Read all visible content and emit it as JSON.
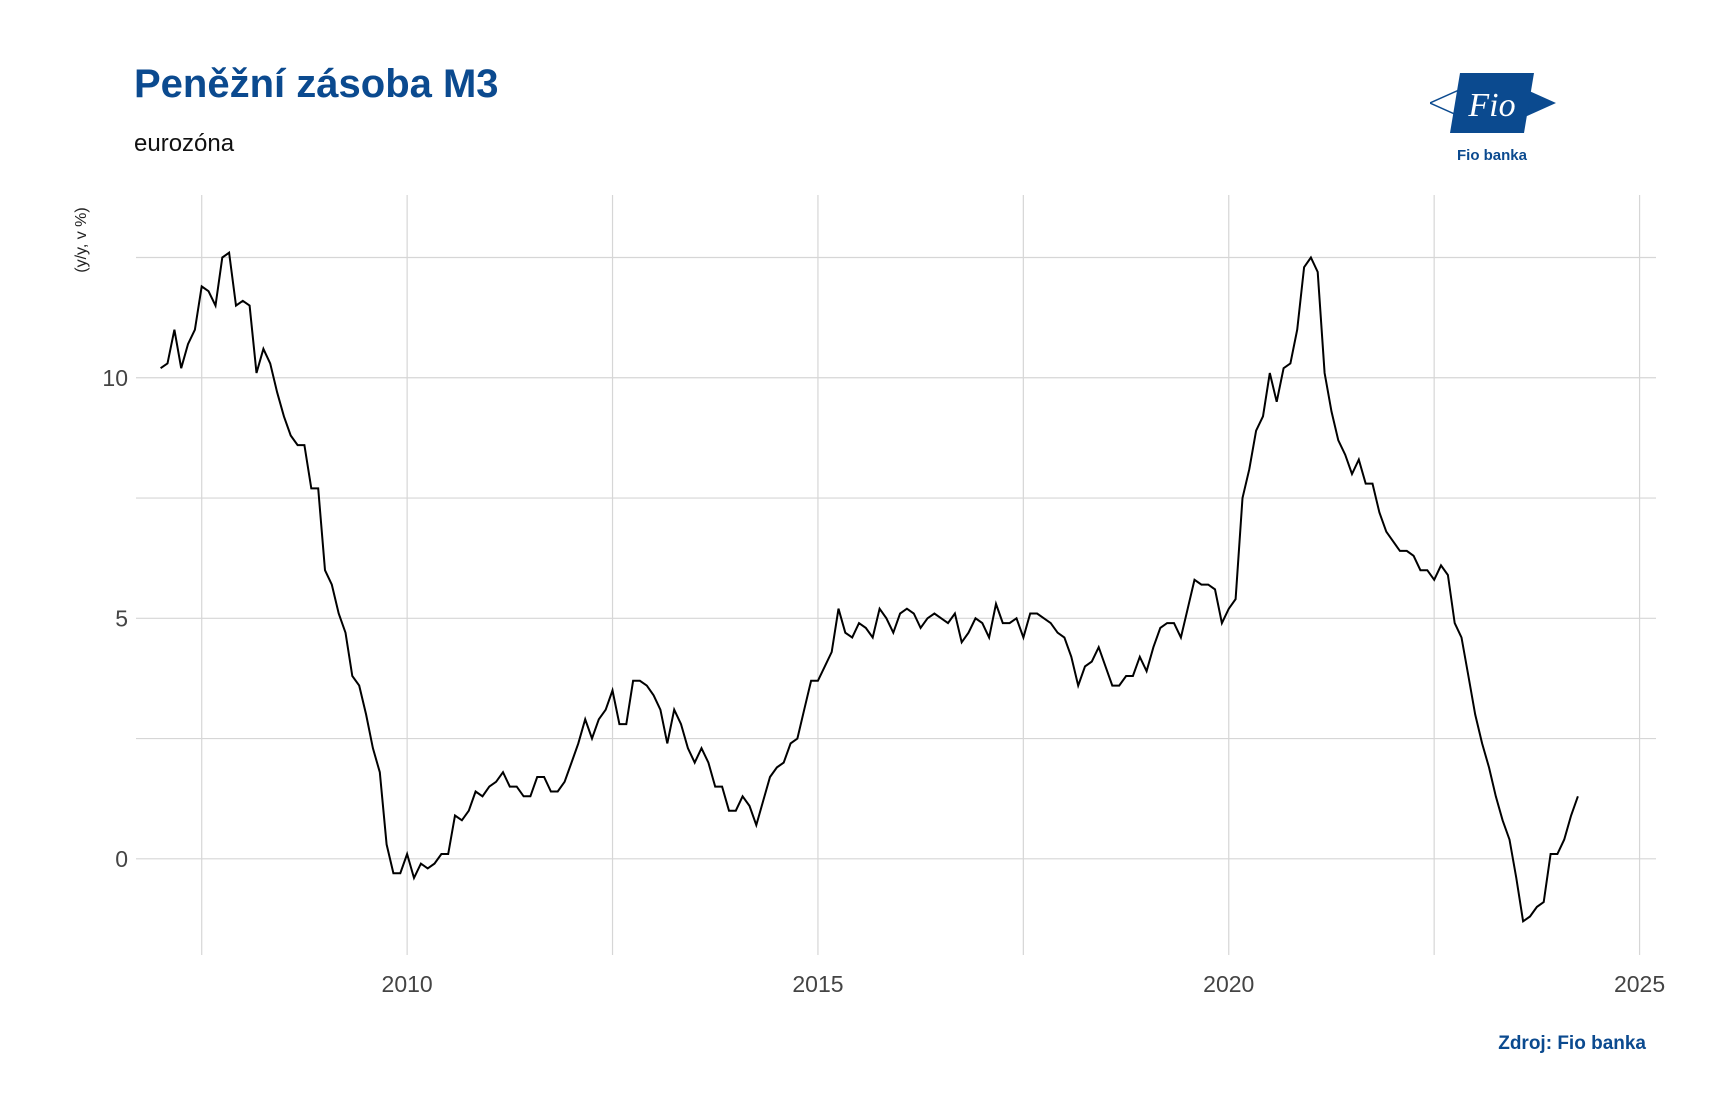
{
  "title": "Peněžní zásoba M3",
  "subtitle": "eurozóna",
  "logo": {
    "icon": "fio-logo",
    "text": "Fio",
    "caption": "Fio banka",
    "color": "#0b4a8f"
  },
  "source": "Zdroj: Fio banka",
  "chart_data": {
    "type": "line",
    "title": "Peněžní zásoba M3",
    "subtitle": "eurozóna",
    "xlabel": "",
    "ylabel": "(y/y, v %)",
    "x_ticks": [
      2010,
      2015,
      2020,
      2025
    ],
    "y_ticks": [
      0,
      5,
      10
    ],
    "x_tick_labels": [
      "2010",
      "2015",
      "2020",
      "2025"
    ],
    "y_tick_labels": [
      "0",
      "5",
      "10"
    ],
    "xlim": [
      2006.7,
      2025.2
    ],
    "ylim": [
      -2.0,
      13.8
    ],
    "grid": true,
    "line_color": "#000000",
    "series": [
      {
        "x": [
          2007.0,
          2007.083,
          2007.167,
          2007.25,
          2007.333,
          2007.417,
          2007.5,
          2007.583,
          2007.667,
          2007.75,
          2007.833,
          2007.917,
          2008.0,
          2008.083,
          2008.167,
          2008.25,
          2008.333,
          2008.417,
          2008.5,
          2008.583,
          2008.667,
          2008.75,
          2008.833,
          2008.917,
          2009.0,
          2009.083,
          2009.167,
          2009.25,
          2009.333,
          2009.417,
          2009.5,
          2009.583,
          2009.667,
          2009.75,
          2009.833,
          2009.917,
          2010.0,
          2010.083,
          2010.167,
          2010.25,
          2010.333,
          2010.417,
          2010.5,
          2010.583,
          2010.667,
          2010.75,
          2010.833,
          2010.917,
          2011.0,
          2011.083,
          2011.167,
          2011.25,
          2011.333,
          2011.417,
          2011.5,
          2011.583,
          2011.667,
          2011.75,
          2011.833,
          2011.917,
          2012.0,
          2012.083,
          2012.167,
          2012.25,
          2012.333,
          2012.417,
          2012.5,
          2012.583,
          2012.667,
          2012.75,
          2012.833,
          2012.917,
          2013.0,
          2013.083,
          2013.167,
          2013.25,
          2013.333,
          2013.417,
          2013.5,
          2013.583,
          2013.667,
          2013.75,
          2013.833,
          2013.917,
          2014.0,
          2014.083,
          2014.167,
          2014.25,
          2014.333,
          2014.417,
          2014.5,
          2014.583,
          2014.667,
          2014.75,
          2014.833,
          2014.917,
          2015.0,
          2015.083,
          2015.167,
          2015.25,
          2015.333,
          2015.417,
          2015.5,
          2015.583,
          2015.667,
          2015.75,
          2015.833,
          2015.917,
          2016.0,
          2016.083,
          2016.167,
          2016.25,
          2016.333,
          2016.417,
          2016.5,
          2016.583,
          2016.667,
          2016.75,
          2016.833,
          2016.917,
          2017.0,
          2017.083,
          2017.167,
          2017.25,
          2017.333,
          2017.417,
          2017.5,
          2017.583,
          2017.667,
          2017.75,
          2017.833,
          2017.917,
          2018.0,
          2018.083,
          2018.167,
          2018.25,
          2018.333,
          2018.417,
          2018.5,
          2018.583,
          2018.667,
          2018.75,
          2018.833,
          2018.917,
          2019.0,
          2019.083,
          2019.167,
          2019.25,
          2019.333,
          2019.417,
          2019.5,
          2019.583,
          2019.667,
          2019.75,
          2019.833,
          2019.917,
          2020.0,
          2020.083,
          2020.167,
          2020.25,
          2020.333,
          2020.417,
          2020.5,
          2020.583,
          2020.667,
          2020.75,
          2020.833,
          2020.917,
          2021.0,
          2021.083,
          2021.167,
          2021.25,
          2021.333,
          2021.417,
          2021.5,
          2021.583,
          2021.667,
          2021.75,
          2021.833,
          2021.917,
          2022.0,
          2022.083,
          2022.167,
          2022.25,
          2022.333,
          2022.417,
          2022.5,
          2022.583,
          2022.667,
          2022.75,
          2022.833,
          2022.917,
          2023.0,
          2023.083,
          2023.167,
          2023.25,
          2023.333,
          2023.417,
          2023.5,
          2023.583,
          2023.667,
          2023.75,
          2023.833,
          2023.917,
          2024.0,
          2024.083,
          2024.167,
          2024.25
        ],
        "y": [
          10.2,
          10.3,
          11.0,
          10.2,
          10.7,
          11.0,
          11.9,
          11.8,
          11.5,
          12.5,
          12.6,
          11.5,
          11.6,
          11.5,
          10.1,
          10.6,
          10.3,
          9.7,
          9.2,
          8.8,
          8.6,
          8.6,
          7.7,
          7.7,
          6.0,
          5.7,
          5.1,
          4.7,
          3.8,
          3.6,
          3.0,
          2.3,
          1.8,
          0.3,
          -0.3,
          -0.3,
          0.1,
          -0.4,
          -0.1,
          -0.2,
          -0.1,
          0.1,
          0.1,
          0.9,
          0.8,
          1.0,
          1.4,
          1.3,
          1.5,
          1.6,
          1.8,
          1.5,
          1.5,
          1.3,
          1.3,
          1.7,
          1.7,
          1.4,
          1.4,
          1.6,
          2.0,
          2.4,
          2.9,
          2.5,
          2.9,
          3.1,
          3.5,
          2.8,
          2.8,
          3.7,
          3.7,
          3.6,
          3.4,
          3.1,
          2.4,
          3.1,
          2.8,
          2.3,
          2.0,
          2.3,
          2.0,
          1.5,
          1.5,
          1.0,
          1.0,
          1.3,
          1.1,
          0.7,
          1.2,
          1.7,
          1.9,
          2.0,
          2.4,
          2.5,
          3.1,
          3.7,
          3.7,
          4.0,
          4.3,
          5.2,
          4.7,
          4.6,
          4.9,
          4.8,
          4.6,
          5.2,
          5.0,
          4.7,
          5.1,
          5.2,
          5.1,
          4.8,
          5.0,
          5.1,
          5.0,
          4.9,
          5.1,
          4.5,
          4.7,
          5.0,
          4.9,
          4.6,
          5.3,
          4.9,
          4.9,
          5.0,
          4.6,
          5.1,
          5.1,
          5.0,
          4.9,
          4.7,
          4.6,
          4.2,
          3.6,
          4.0,
          4.1,
          4.4,
          4.0,
          3.6,
          3.6,
          3.8,
          3.8,
          4.2,
          3.9,
          4.4,
          4.8,
          4.9,
          4.9,
          4.6,
          5.2,
          5.8,
          5.7,
          5.7,
          5.6,
          4.9,
          5.2,
          5.4,
          7.5,
          8.1,
          8.9,
          9.2,
          10.1,
          9.5,
          10.2,
          10.3,
          11.0,
          12.3,
          12.5,
          12.2,
          10.1,
          9.3,
          8.7,
          8.4,
          8.0,
          8.3,
          7.8,
          7.8,
          7.2,
          6.8,
          6.6,
          6.4,
          6.4,
          6.3,
          6.0,
          6.0,
          5.8,
          6.1,
          5.9,
          4.9,
          4.6,
          3.8,
          3.0,
          2.4,
          1.9,
          1.3,
          0.8,
          0.4,
          -0.4,
          -1.3,
          -1.2,
          -1.0,
          -0.9,
          0.1,
          0.1,
          0.4,
          0.9,
          1.3
        ]
      }
    ]
  }
}
